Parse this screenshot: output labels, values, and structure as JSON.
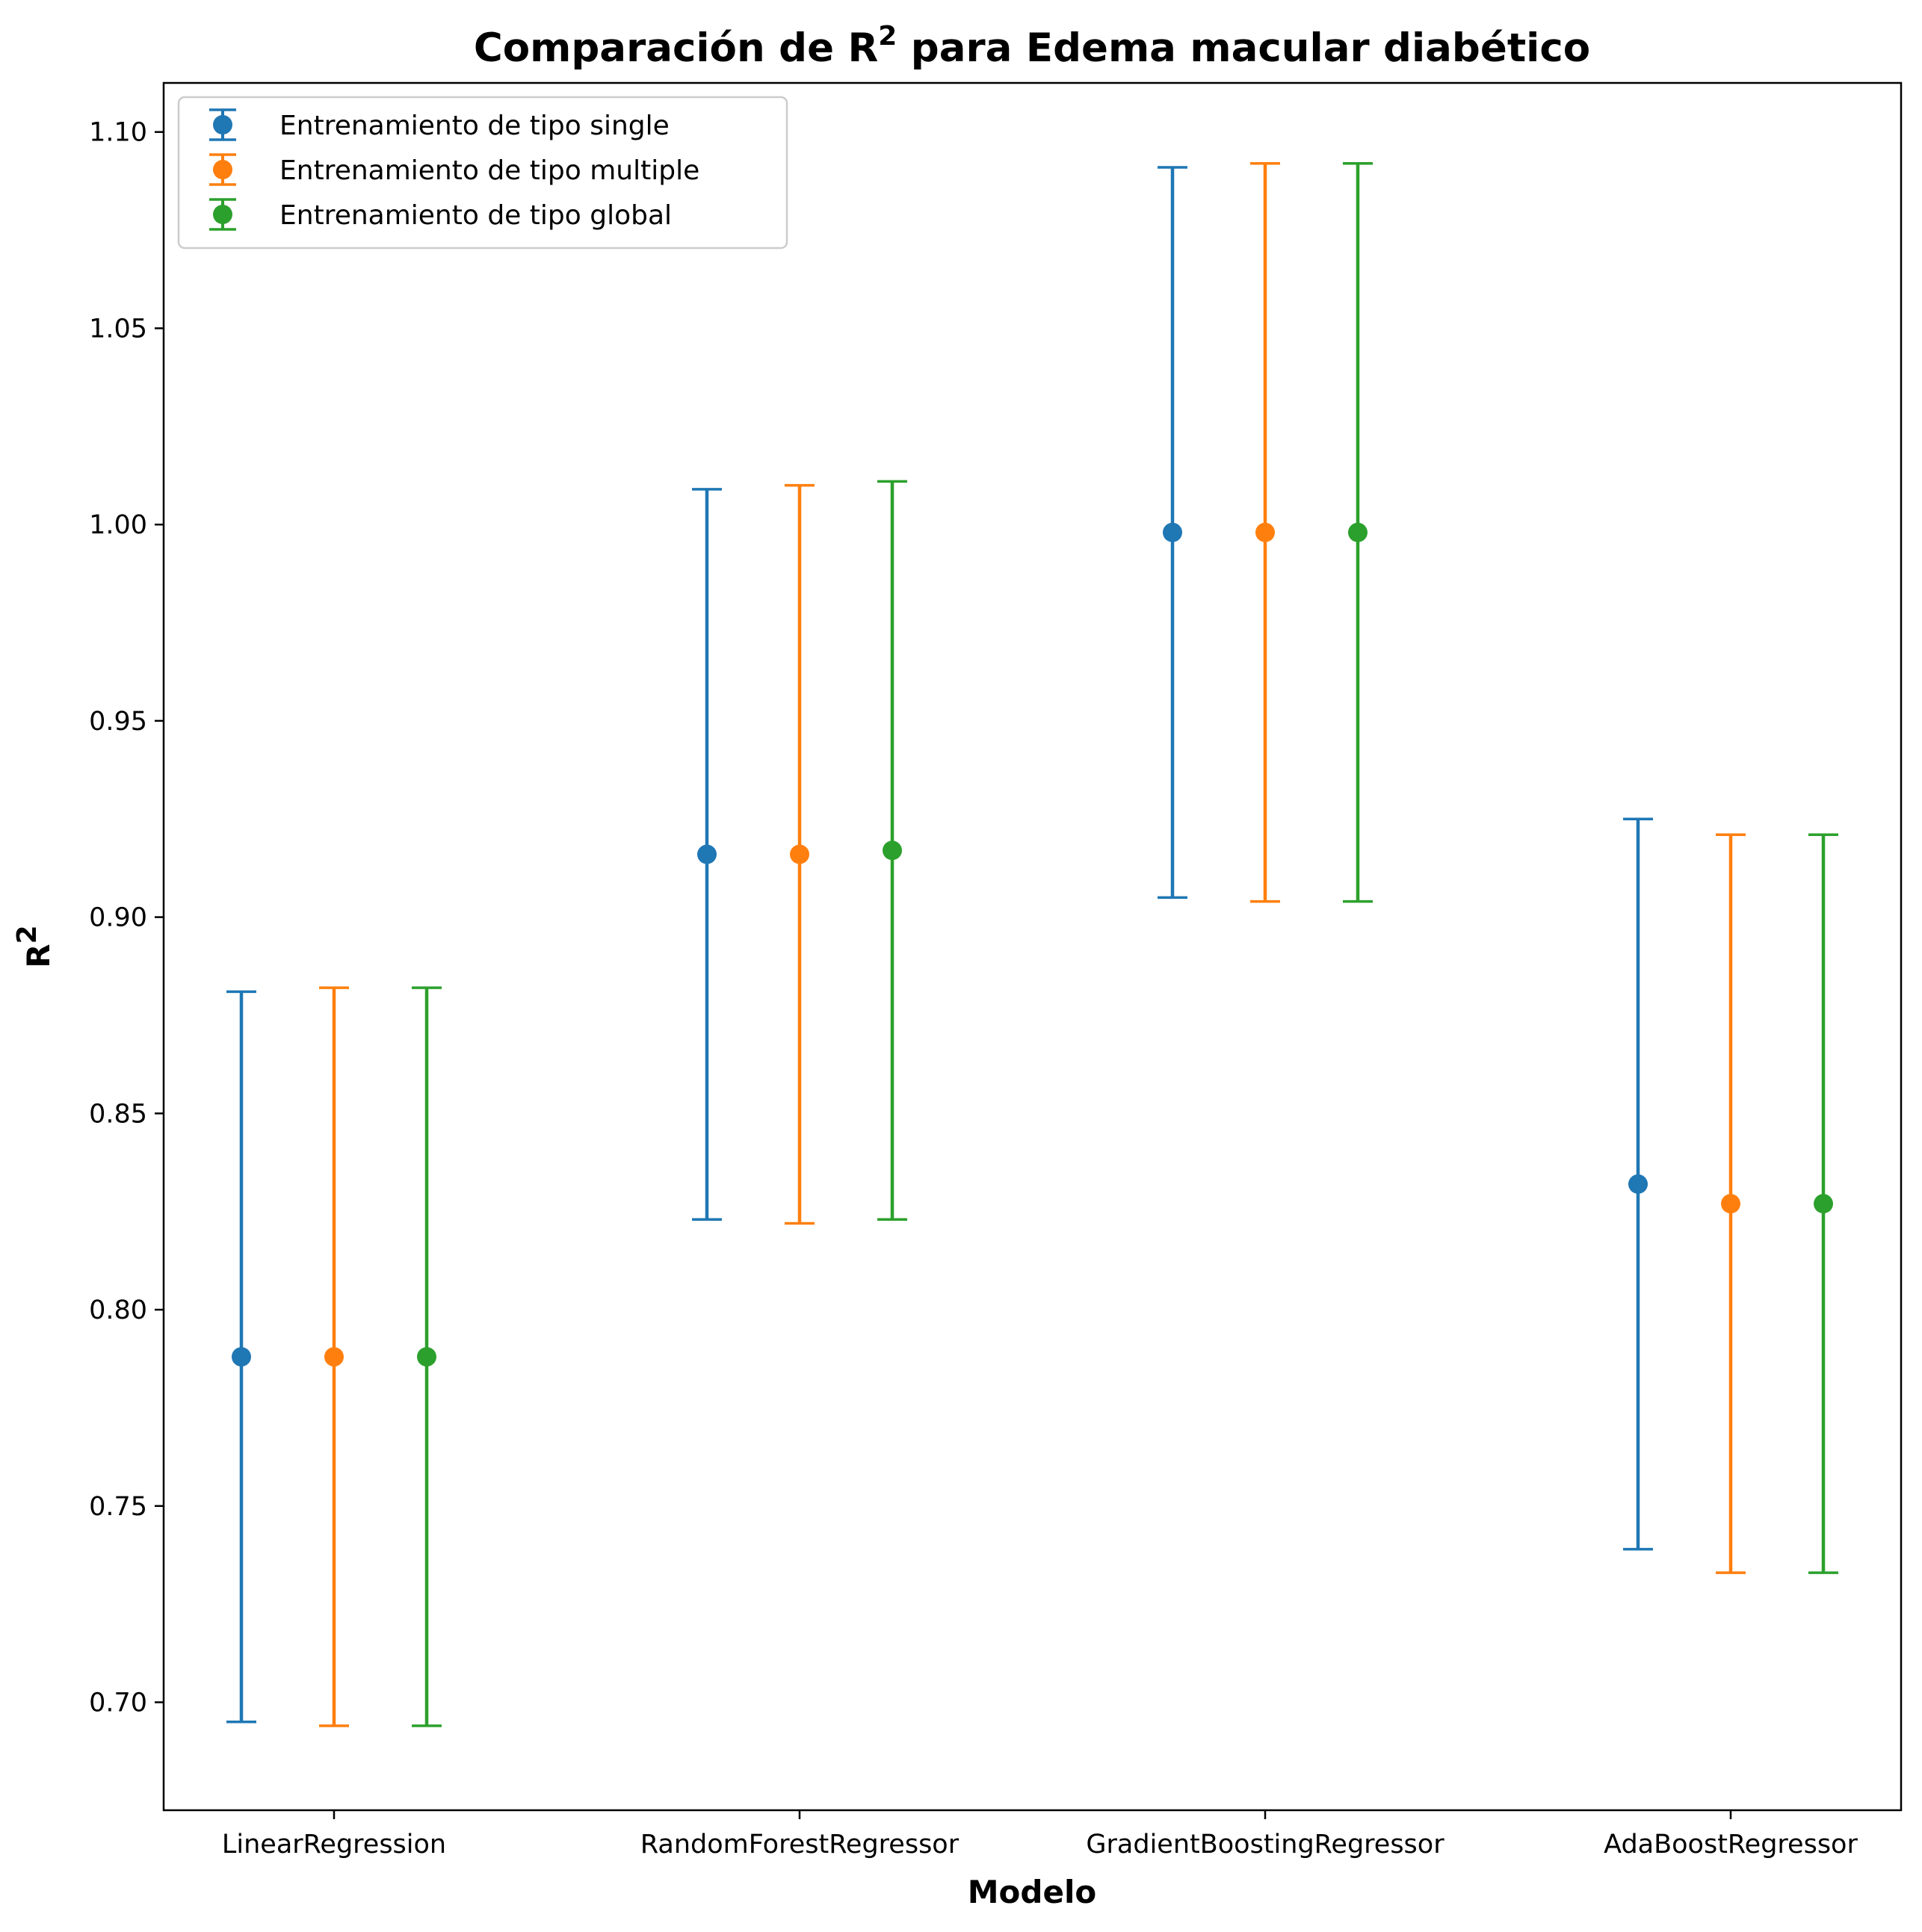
{
  "chart_data": {
    "type": "scatter",
    "title": "Comparación de R",
    "title_superscript": "2",
    "xlabel": "Modelo",
    "ylabel": "R",
    "ylabel_superscript": "2",
    "categories": [
      "LinearRegression",
      "RandomForestRegressor",
      "GradientBoostingRegressor",
      "AdaBoostRegressor"
    ],
    "ylim": [
      0.6725,
      1.1125
    ],
    "yticks": [
      0.7,
      0.75,
      0.8,
      0.85,
      0.9,
      0.95,
      1.0,
      1.05,
      1.1
    ],
    "ytick_labels": [
      "0.70",
      "0.75",
      "0.80",
      "0.85",
      "0.90",
      "0.95",
      "1.00",
      "1.05",
      "1.10"
    ],
    "grid": false,
    "legend_position": "top-left",
    "series": [
      {
        "name": "Entrenamiento de tipo single",
        "color": "#1f77b4",
        "values": [
          0.788,
          0.916,
          0.998,
          0.832
        ],
        "err_low": [
          0.695,
          0.823,
          0.905,
          0.739
        ],
        "err_high": [
          0.881,
          1.009,
          1.091,
          0.925
        ]
      },
      {
        "name": "Entrenamiento  de tipo multiple",
        "color": "#ff7f0e",
        "values": [
          0.788,
          0.916,
          0.998,
          0.827
        ],
        "err_low": [
          0.694,
          0.822,
          0.904,
          0.733
        ],
        "err_high": [
          0.882,
          1.01,
          1.092,
          0.921
        ]
      },
      {
        "name": "Entrenamiento de tipo global",
        "color": "#2ca02c",
        "values": [
          0.788,
          0.917,
          0.998,
          0.827
        ],
        "err_low": [
          0.694,
          0.823,
          0.904,
          0.733
        ],
        "err_high": [
          0.882,
          1.011,
          1.092,
          0.921
        ]
      }
    ]
  }
}
